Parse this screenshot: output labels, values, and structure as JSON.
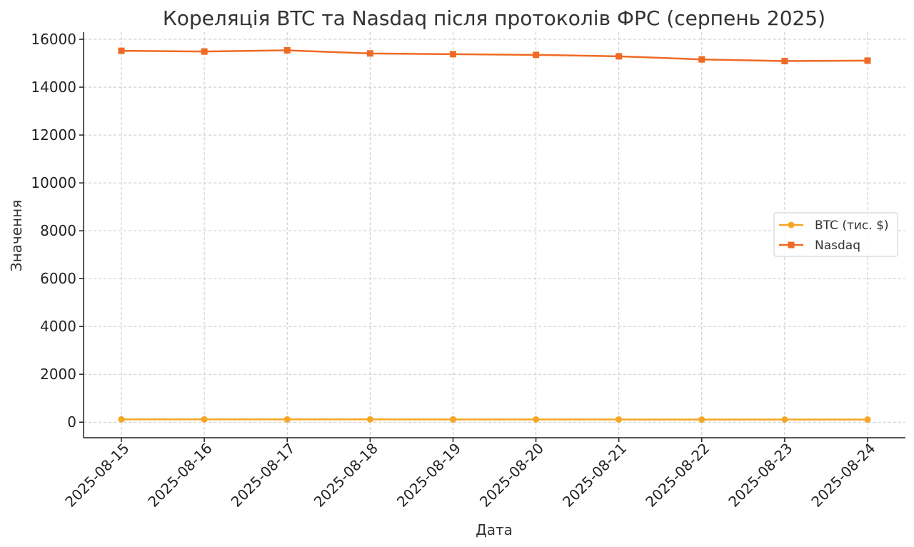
{
  "chart_data": {
    "type": "line",
    "title": "Кореляція BTC та Nasdaq після протоколів ФРС (серпень 2025)",
    "xlabel": "Дата",
    "ylabel": "Значення",
    "x": [
      "2025-08-15",
      "2025-08-16",
      "2025-08-17",
      "2025-08-18",
      "2025-08-19",
      "2025-08-20",
      "2025-08-21",
      "2025-08-22",
      "2025-08-23",
      "2025-08-24"
    ],
    "ylim": [
      -650,
      16300
    ],
    "yticks": [
      0,
      2000,
      4000,
      6000,
      8000,
      10000,
      12000,
      14000,
      16000
    ],
    "grid": true,
    "legend_position": "center-right",
    "series": [
      {
        "name": "BTC (тис. $)",
        "color": "#f5a623",
        "marker": "circle",
        "values": [
          118,
          117,
          118,
          117,
          116,
          115,
          113,
          112,
          111,
          112
        ]
      },
      {
        "name": "Nasdaq",
        "color": "#ef6a24",
        "marker": "square",
        "values": [
          15520,
          15490,
          15540,
          15410,
          15380,
          15350,
          15290,
          15160,
          15090,
          15110
        ]
      }
    ]
  }
}
